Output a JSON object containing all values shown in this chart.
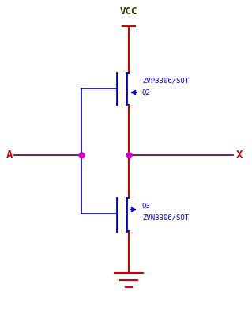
{
  "bg_color": "#ffffff",
  "rc": "#cc0000",
  "bc": "#0000cc",
  "dc": "#440044",
  "dot_c": "#cc00cc",
  "vcc_label": "VCC",
  "a_label": "A",
  "x_label": "X",
  "q2_line1": "ZVP3306/SOT",
  "q2_line2": "Q2",
  "q3_line1": "Q3",
  "q3_line2": "ZVN3306/SOT",
  "figsize": [
    3.19,
    4.07
  ],
  "dpi": 100
}
